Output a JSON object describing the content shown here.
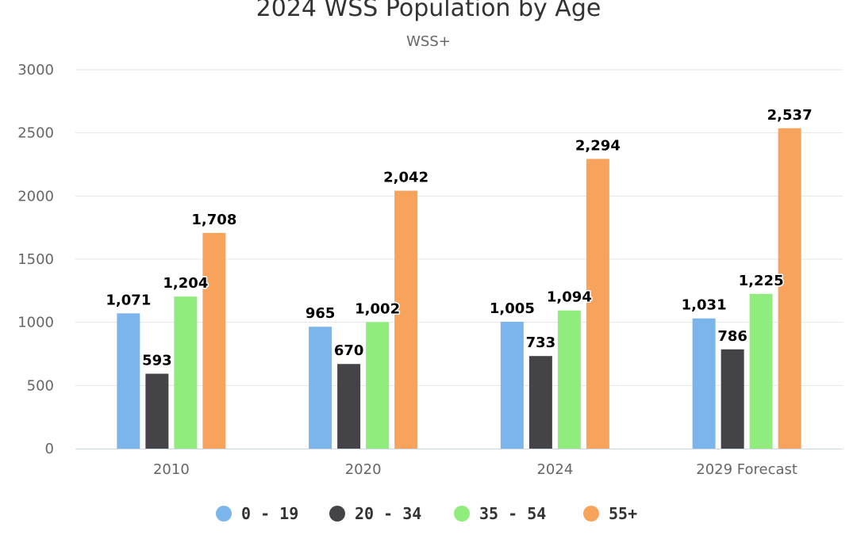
{
  "chart_data": {
    "type": "bar",
    "title": "2024 WSS Population by Age",
    "subtitle": "WSS+",
    "categories": [
      "2010",
      "2020",
      "2024",
      "2029 Forecast"
    ],
    "series": [
      {
        "name": "0 - 19",
        "color": "#7cb5ec",
        "values": [
          1071,
          965,
          1005,
          1031
        ]
      },
      {
        "name": "20 - 34",
        "color": "#434348",
        "values": [
          593,
          670,
          733,
          786
        ]
      },
      {
        "name": "35 - 54",
        "color": "#90ed7d",
        "values": [
          1204,
          1002,
          1094,
          1225
        ]
      },
      {
        "name": "55+",
        "color": "#f7a35c",
        "values": [
          1708,
          2042,
          2294,
          2537
        ]
      }
    ],
    "data_labels": [
      [
        "1,071",
        "965",
        "1,005",
        "1,031"
      ],
      [
        "593",
        "670",
        "733",
        "786"
      ],
      [
        "1,204",
        "1,002",
        "1,094",
        "1,225"
      ],
      [
        "1,708",
        "2,042",
        "2,294",
        "2,537"
      ]
    ],
    "ylim": [
      0,
      3000
    ],
    "yticks": [
      "0",
      "500",
      "1000",
      "1500",
      "2000",
      "2500",
      "3000"
    ],
    "ytick_values": [
      0,
      500,
      1000,
      1500,
      2000,
      2500,
      3000
    ],
    "xlabel": "",
    "ylabel": "",
    "grid": true,
    "legend_position": "bottom-center"
  }
}
